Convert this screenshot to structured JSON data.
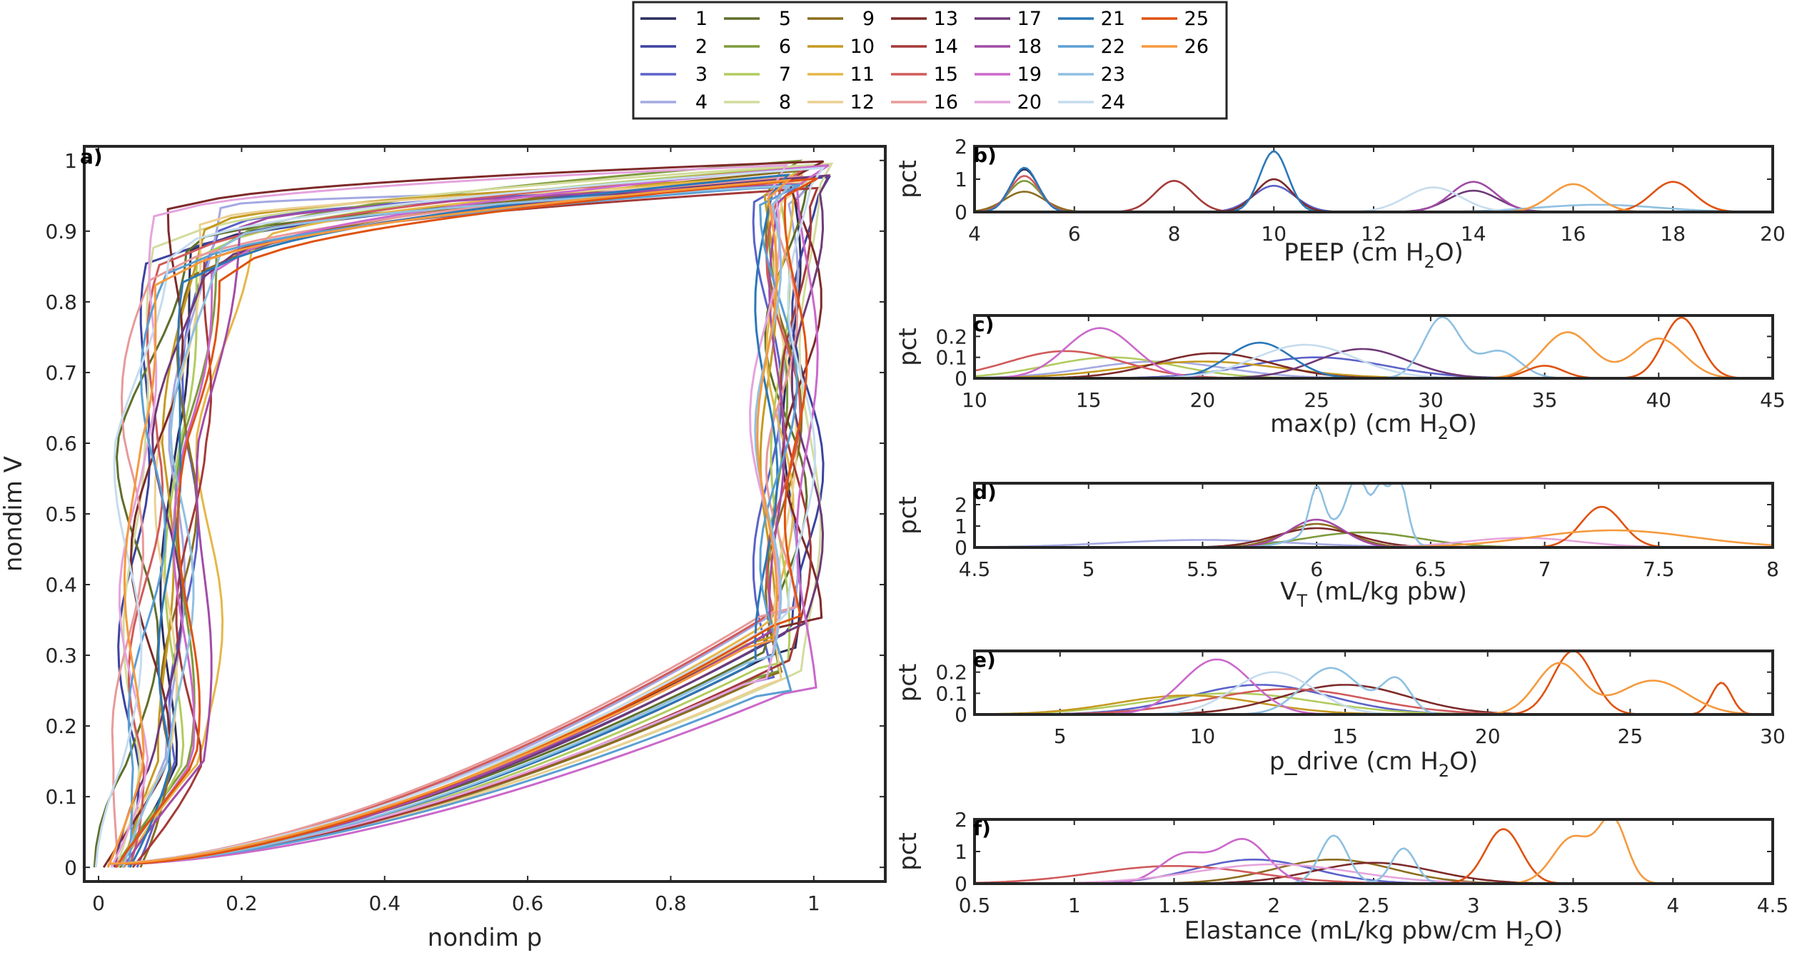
{
  "chart_data": [
    {
      "id": "a",
      "panel_label": "a)",
      "type": "line",
      "xlabel": "nondim p",
      "ylabel": "nondim V",
      "xlim": [
        -0.02,
        1.1
      ],
      "ylim": [
        -0.02,
        1.02
      ],
      "xticks": [
        0,
        0.2,
        0.4,
        0.6,
        0.8,
        1
      ],
      "xtick_labels": [
        "0",
        "0.2",
        "0.4",
        "0.6",
        "0.8",
        "1"
      ],
      "yticks": [
        0,
        0.1,
        0.2,
        0.3,
        0.4,
        0.5,
        0.6,
        0.7,
        0.8,
        0.9,
        1
      ],
      "ytick_labels": [
        "0",
        "0.1",
        "0.2",
        "0.3",
        "0.4",
        "0.5",
        "0.6",
        "0.7",
        "0.8",
        "0.9",
        "1"
      ],
      "description_series": "26 normalized pressure-volume loops, one per subject (ids 1-26)"
    },
    {
      "id": "b",
      "panel_label": "b)",
      "type": "line",
      "xlabel_main": "PEEP (cm H",
      "xlabel_sub": "2",
      "xlabel_tail": "O)",
      "ylabel": "pct",
      "xlim": [
        4,
        20
      ],
      "ylim": [
        0,
        2
      ],
      "xticks": [
        4,
        6,
        8,
        10,
        12,
        14,
        16,
        18,
        20
      ],
      "xtick_labels": [
        "4",
        "6",
        "8",
        "10",
        "12",
        "14",
        "16",
        "18",
        "20"
      ],
      "yticks": [
        0,
        1,
        2
      ],
      "ytick_labels": [
        "0",
        "1",
        "2"
      ],
      "peaks": [
        {
          "series": 1,
          "x": 5.0,
          "h": 1.3,
          "w": 0.28
        },
        {
          "series": 21,
          "x": 5.0,
          "h": 1.35,
          "w": 0.27
        },
        {
          "series": 15,
          "x": 5.0,
          "h": 1.1,
          "w": 0.3
        },
        {
          "series": 9,
          "x": 5.0,
          "h": 0.62,
          "w": 0.4
        },
        {
          "series": 6,
          "x": 5.0,
          "h": 0.95,
          "w": 0.32
        },
        {
          "series": 14,
          "x": 8.0,
          "h": 0.95,
          "w": 0.38
        },
        {
          "series": 21,
          "x": 10.0,
          "h": 1.85,
          "w": 0.28
        },
        {
          "series": 13,
          "x": 10.0,
          "h": 1.0,
          "w": 0.36
        },
        {
          "series": 3,
          "x": 10.0,
          "h": 0.8,
          "w": 0.42
        },
        {
          "series": 24,
          "x": 13.2,
          "h": 0.75,
          "w": 0.55
        },
        {
          "series": 18,
          "x": 14.0,
          "h": 0.92,
          "w": 0.45
        },
        {
          "series": 17,
          "x": 14.0,
          "h": 0.65,
          "w": 0.5
        },
        {
          "series": 26,
          "x": 16.0,
          "h": 0.85,
          "w": 0.45
        },
        {
          "series": 23,
          "x": 16.5,
          "h": 0.22,
          "w": 1.2
        },
        {
          "series": 25,
          "x": 18.0,
          "h": 0.92,
          "w": 0.42
        }
      ]
    },
    {
      "id": "c",
      "panel_label": "c)",
      "type": "line",
      "xlabel_main": "max(p) (cm H",
      "xlabel_sub": "2",
      "xlabel_tail": "O)",
      "ylabel": "pct",
      "xlim": [
        10,
        45
      ],
      "ylim": [
        0,
        0.3
      ],
      "xticks": [
        10,
        15,
        20,
        25,
        30,
        35,
        40,
        45
      ],
      "xtick_labels": [
        "10",
        "15",
        "20",
        "25",
        "30",
        "35",
        "40",
        "45"
      ],
      "yticks": [
        0,
        0.1,
        0.2
      ],
      "ytick_labels": [
        "0",
        "0.1",
        "0.2"
      ],
      "peaks": [
        {
          "series": 19,
          "x": 15.5,
          "h": 0.24,
          "w": 1.5
        },
        {
          "series": 15,
          "x": 14.0,
          "h": 0.13,
          "w": 2.5
        },
        {
          "series": 7,
          "x": 16.0,
          "h": 0.1,
          "w": 2.8
        },
        {
          "series": 4,
          "x": 18.0,
          "h": 0.08,
          "w": 3.0
        },
        {
          "series": 13,
          "x": 20.5,
          "h": 0.12,
          "w": 2.5
        },
        {
          "series": 21,
          "x": 22.5,
          "h": 0.17,
          "w": 1.4
        },
        {
          "series": 10,
          "x": 20.0,
          "h": 0.08,
          "w": 3.5
        },
        {
          "series": 24,
          "x": 24.5,
          "h": 0.16,
          "w": 2.2
        },
        {
          "series": 17,
          "x": 27.0,
          "h": 0.14,
          "w": 2.0
        },
        {
          "series": 3,
          "x": 25.0,
          "h": 0.1,
          "w": 3.0
        },
        {
          "series": 23,
          "x": 30.5,
          "h": 0.29,
          "w": 0.8
        },
        {
          "series": 23,
          "x": 33.0,
          "h": 0.13,
          "w": 0.9
        },
        {
          "series": 26,
          "x": 36.0,
          "h": 0.22,
          "w": 1.1
        },
        {
          "series": 26,
          "x": 40.0,
          "h": 0.19,
          "w": 1.1
        },
        {
          "series": 25,
          "x": 41.0,
          "h": 0.29,
          "w": 0.8
        },
        {
          "series": 25,
          "x": 35.0,
          "h": 0.06,
          "w": 0.8
        }
      ]
    },
    {
      "id": "d",
      "panel_label": "d)",
      "type": "line",
      "xlabel_main": "V",
      "xlabel_sub": "T",
      "xlabel_tail": " (mL/kg pbw)",
      "ylabel": "pct",
      "xlim": [
        4.5,
        8
      ],
      "ylim": [
        0,
        3
      ],
      "xticks": [
        4.5,
        5,
        5.5,
        6,
        6.5,
        7,
        7.5,
        8
      ],
      "xtick_labels": [
        "4.5",
        "5",
        "5.5",
        "6",
        "6.5",
        "7",
        "7.5",
        "8"
      ],
      "yticks": [
        0,
        1,
        2
      ],
      "ytick_labels": [
        "0",
        "1",
        "2"
      ],
      "peaks": [
        {
          "series": 23,
          "x": 6.0,
          "h": 2.0,
          "w": 0.03
        },
        {
          "series": 23,
          "x": 6.18,
          "h": 2.3,
          "w": 0.04
        },
        {
          "series": 23,
          "x": 6.28,
          "h": 2.0,
          "w": 0.03
        },
        {
          "series": 23,
          "x": 6.36,
          "h": 3.0,
          "w": 0.035
        },
        {
          "series": 23,
          "x": 6.12,
          "h": 1.2,
          "w": 0.15
        },
        {
          "series": 9,
          "x": 6.0,
          "h": 1.1,
          "w": 0.14
        },
        {
          "series": 18,
          "x": 6.0,
          "h": 1.3,
          "w": 0.12
        },
        {
          "series": 13,
          "x": 6.0,
          "h": 0.9,
          "w": 0.18
        },
        {
          "series": 6,
          "x": 6.2,
          "h": 0.7,
          "w": 0.25
        },
        {
          "series": 20,
          "x": 6.9,
          "h": 0.45,
          "w": 0.25
        },
        {
          "series": 4,
          "x": 5.5,
          "h": 0.35,
          "w": 0.4
        },
        {
          "series": 25,
          "x": 7.25,
          "h": 1.9,
          "w": 0.09
        },
        {
          "series": 26,
          "x": 7.3,
          "h": 0.8,
          "w": 0.35
        }
      ]
    },
    {
      "id": "e",
      "panel_label": "e)",
      "type": "line",
      "xlabel_main": "p_drive (cm H",
      "xlabel_sub": "2",
      "xlabel_tail": "O)",
      "ylabel": "pct",
      "xlim": [
        2,
        30
      ],
      "ylim": [
        0,
        0.3
      ],
      "xticks": [
        5,
        10,
        15,
        20,
        25,
        30
      ],
      "xtick_labels": [
        "5",
        "10",
        "15",
        "20",
        "25",
        "30"
      ],
      "yticks": [
        0,
        0.1,
        0.2
      ],
      "ytick_labels": [
        "0",
        "0.1",
        "0.2"
      ],
      "peaks": [
        {
          "series": 19,
          "x": 10.5,
          "h": 0.26,
          "w": 1.2
        },
        {
          "series": 24,
          "x": 12.5,
          "h": 0.2,
          "w": 1.4
        },
        {
          "series": 23,
          "x": 14.5,
          "h": 0.22,
          "w": 1.0
        },
        {
          "series": 23,
          "x": 16.8,
          "h": 0.16,
          "w": 0.5
        },
        {
          "series": 3,
          "x": 12.0,
          "h": 0.14,
          "w": 2.5
        },
        {
          "series": 15,
          "x": 13.0,
          "h": 0.12,
          "w": 2.8
        },
        {
          "series": 7,
          "x": 11.0,
          "h": 0.1,
          "w": 3.0
        },
        {
          "series": 13,
          "x": 15.0,
          "h": 0.14,
          "w": 2.2
        },
        {
          "series": 10,
          "x": 9.5,
          "h": 0.09,
          "w": 2.5
        },
        {
          "series": 25,
          "x": 23.0,
          "h": 0.3,
          "w": 0.7
        },
        {
          "series": 25,
          "x": 28.2,
          "h": 0.15,
          "w": 0.35
        },
        {
          "series": 26,
          "x": 22.5,
          "h": 0.24,
          "w": 0.8
        },
        {
          "series": 26,
          "x": 25.8,
          "h": 0.16,
          "w": 1.2
        }
      ]
    },
    {
      "id": "f",
      "panel_label": "f)",
      "type": "line",
      "xlabel_main": "Elastance (mL/kg pbw/cm H",
      "xlabel_sub": "2",
      "xlabel_tail": "O)",
      "ylabel": "pct",
      "xlim": [
        0.5,
        4.5
      ],
      "ylim": [
        0,
        2
      ],
      "xticks": [
        0.5,
        1,
        1.5,
        2,
        2.5,
        3,
        3.5,
        4,
        4.5
      ],
      "xtick_labels": [
        "0.5",
        "1",
        "1.5",
        "2",
        "2.5",
        "3",
        "3.5",
        "4",
        "4.5"
      ],
      "yticks": [
        0,
        1,
        2
      ],
      "ytick_labels": [
        "0",
        "1",
        "2"
      ],
      "peaks": [
        {
          "series": 19,
          "x": 1.85,
          "h": 1.35,
          "w": 0.12
        },
        {
          "series": 19,
          "x": 1.55,
          "h": 0.9,
          "w": 0.12
        },
        {
          "series": 23,
          "x": 2.3,
          "h": 1.5,
          "w": 0.07
        },
        {
          "series": 23,
          "x": 2.65,
          "h": 1.1,
          "w": 0.06
        },
        {
          "series": 3,
          "x": 1.9,
          "h": 0.75,
          "w": 0.3
        },
        {
          "series": 15,
          "x": 1.5,
          "h": 0.55,
          "w": 0.4
        },
        {
          "series": 13,
          "x": 2.5,
          "h": 0.65,
          "w": 0.3
        },
        {
          "series": 9,
          "x": 2.3,
          "h": 0.75,
          "w": 0.3
        },
        {
          "series": 20,
          "x": 2.0,
          "h": 0.6,
          "w": 0.4
        },
        {
          "series": 25,
          "x": 3.15,
          "h": 1.7,
          "w": 0.09
        },
        {
          "series": 26,
          "x": 3.5,
          "h": 1.45,
          "w": 0.1
        },
        {
          "series": 26,
          "x": 3.7,
          "h": 1.9,
          "w": 0.07
        }
      ]
    }
  ],
  "legend": {
    "placement": "top-center",
    "entries": [
      {
        "label": "1",
        "color": "#2b2d5c"
      },
      {
        "label": "2",
        "color": "#3b43a0"
      },
      {
        "label": "3",
        "color": "#5b62c8"
      },
      {
        "label": "4",
        "color": "#a4a9e2"
      },
      {
        "label": "5",
        "color": "#5f6f2a"
      },
      {
        "label": "6",
        "color": "#7e9a3c"
      },
      {
        "label": "7",
        "color": "#b1cc5e"
      },
      {
        "label": "8",
        "color": "#d3dc9e"
      },
      {
        "label": "9",
        "color": "#8c6d1f"
      },
      {
        "label": "10",
        "color": "#c59a22"
      },
      {
        "label": "11",
        "color": "#e5b74a"
      },
      {
        "label": "12",
        "color": "#ecd092"
      },
      {
        "label": "13",
        "color": "#7d2a29"
      },
      {
        "label": "14",
        "color": "#a43a39"
      },
      {
        "label": "15",
        "color": "#d05a5b"
      },
      {
        "label": "16",
        "color": "#e89a9a"
      },
      {
        "label": "17",
        "color": "#6f3a78"
      },
      {
        "label": "18",
        "color": "#a24ba6"
      },
      {
        "label": "19",
        "color": "#cb68cb"
      },
      {
        "label": "20",
        "color": "#e5a4dd"
      },
      {
        "label": "21",
        "color": "#2a78b8"
      },
      {
        "label": "22",
        "color": "#5b9fd3"
      },
      {
        "label": "23",
        "color": "#8fc0e1"
      },
      {
        "label": "24",
        "color": "#c5dcee"
      },
      {
        "label": "25",
        "color": "#e0520f"
      },
      {
        "label": "26",
        "color": "#f59a3e"
      }
    ]
  }
}
